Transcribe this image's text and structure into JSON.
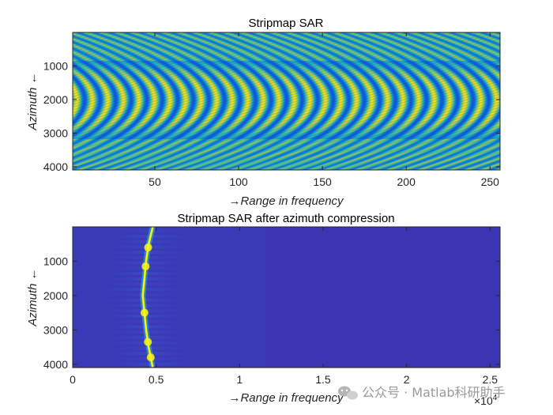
{
  "chart_data": [
    {
      "type": "heatmap",
      "title": "Stripmap SAR",
      "xlabel": "→Range in frequency",
      "ylabel": "Azimuth ←",
      "xlim": [
        1,
        256
      ],
      "ylim": [
        1,
        4096
      ],
      "y_reversed": true,
      "xticks": [
        50,
        100,
        150,
        200,
        250
      ],
      "yticks": [
        1000,
        2000,
        3000,
        4000
      ],
      "xtick_labels": [
        "50",
        "100",
        "150",
        "200",
        "250"
      ],
      "ytick_labels": [
        "1000",
        "2000",
        "3000",
        "4000"
      ],
      "colormap": "parula",
      "pattern": "chirp fringes curving around azimuth 2000, bright band between ~1000 and ~3200"
    },
    {
      "type": "heatmap",
      "title": "Stripmap SAR after azimuth compression",
      "xlabel": "→Range in frequency",
      "ylabel": "Azimuth ←",
      "xlim": [
        0,
        2.56
      ],
      "ylim": [
        1,
        4096
      ],
      "y_reversed": true,
      "x_multiplier": "×10",
      "x_multiplier_exp": "4",
      "xticks": [
        0,
        0.5,
        1,
        1.5,
        2,
        2.5
      ],
      "yticks": [
        1000,
        2000,
        3000,
        4000
      ],
      "xtick_labels": [
        "0",
        "0.5",
        "1",
        "1.5",
        "2",
        "2.5"
      ],
      "ytick_labels": [
        "1000",
        "2000",
        "3000",
        "4000"
      ],
      "colormap": "parula",
      "target_curve": [
        {
          "azimuth": 1,
          "x": 0.48
        },
        {
          "azimuth": 500,
          "x": 0.455
        },
        {
          "azimuth": 1000,
          "x": 0.44
        },
        {
          "azimuth": 2000,
          "x": 0.42
        },
        {
          "azimuth": 3000,
          "x": 0.44
        },
        {
          "azimuth": 3500,
          "x": 0.455
        },
        {
          "azimuth": 4096,
          "x": 0.48
        }
      ]
    }
  ],
  "watermark": "公众号 · Matlab科研助手"
}
